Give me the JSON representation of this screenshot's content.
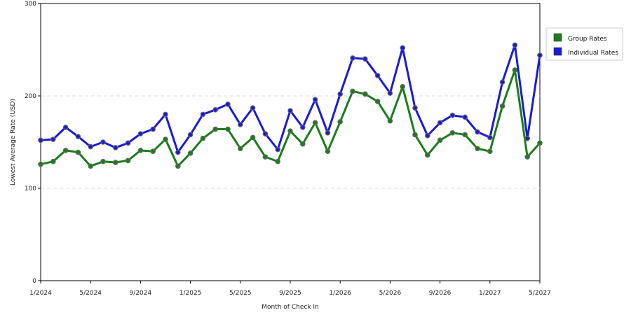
{
  "chart_data": {
    "type": "line",
    "xlabel": "Month of Check In",
    "ylabel": "Lowest Average Rate (USD)",
    "ylim": [
      0,
      300
    ],
    "yticks": [
      "0",
      "100",
      "200",
      "300"
    ],
    "grid": "horizontal dashed",
    "legend_placement": "top-right",
    "x": [
      "1/2024",
      "2/2024",
      "3/2024",
      "4/2024",
      "5/2024",
      "6/2024",
      "7/2024",
      "8/2024",
      "9/2024",
      "10/2024",
      "11/2024",
      "12/2024",
      "1/2025",
      "2/2025",
      "3/2025",
      "4/2025",
      "5/2025",
      "6/2025",
      "7/2025",
      "8/2025",
      "9/2025",
      "10/2025",
      "11/2025",
      "12/2025",
      "1/2026",
      "2/2026",
      "3/2026",
      "4/2026",
      "5/2026",
      "6/2026",
      "7/2026",
      "8/2026",
      "9/2026",
      "10/2026",
      "11/2026",
      "12/2026",
      "1/2027",
      "2/2027",
      "3/2027",
      "4/2027",
      "5/2027"
    ],
    "xtick_labels": [
      "1/2024",
      "5/2024",
      "9/2024",
      "1/2025",
      "5/2025",
      "9/2025",
      "1/2026",
      "5/2026",
      "9/2026",
      "1/2027",
      "5/2027"
    ],
    "series": [
      {
        "name": "Group Rates",
        "color": "#1a7d1a",
        "values": [
          126,
          129,
          141,
          139,
          124,
          129,
          128,
          130,
          141,
          140,
          153,
          124,
          138,
          154,
          164,
          164,
          143,
          155,
          134,
          129,
          162,
          148,
          171,
          140,
          172,
          205,
          202,
          194,
          173,
          210,
          158,
          136,
          152,
          160,
          158,
          143,
          140,
          189,
          228,
          134,
          149
        ]
      },
      {
        "name": "Individual Rates",
        "color": "#1a1ad6",
        "values": [
          152,
          153,
          166,
          156,
          145,
          150,
          144,
          149,
          159,
          164,
          180,
          139,
          158,
          180,
          185,
          191,
          169,
          187,
          159,
          142,
          184,
          166,
          196,
          160,
          202,
          241,
          240,
          222,
          203,
          252,
          187,
          157,
          171,
          179,
          177,
          161,
          155,
          215,
          255,
          154,
          244
        ]
      }
    ]
  }
}
